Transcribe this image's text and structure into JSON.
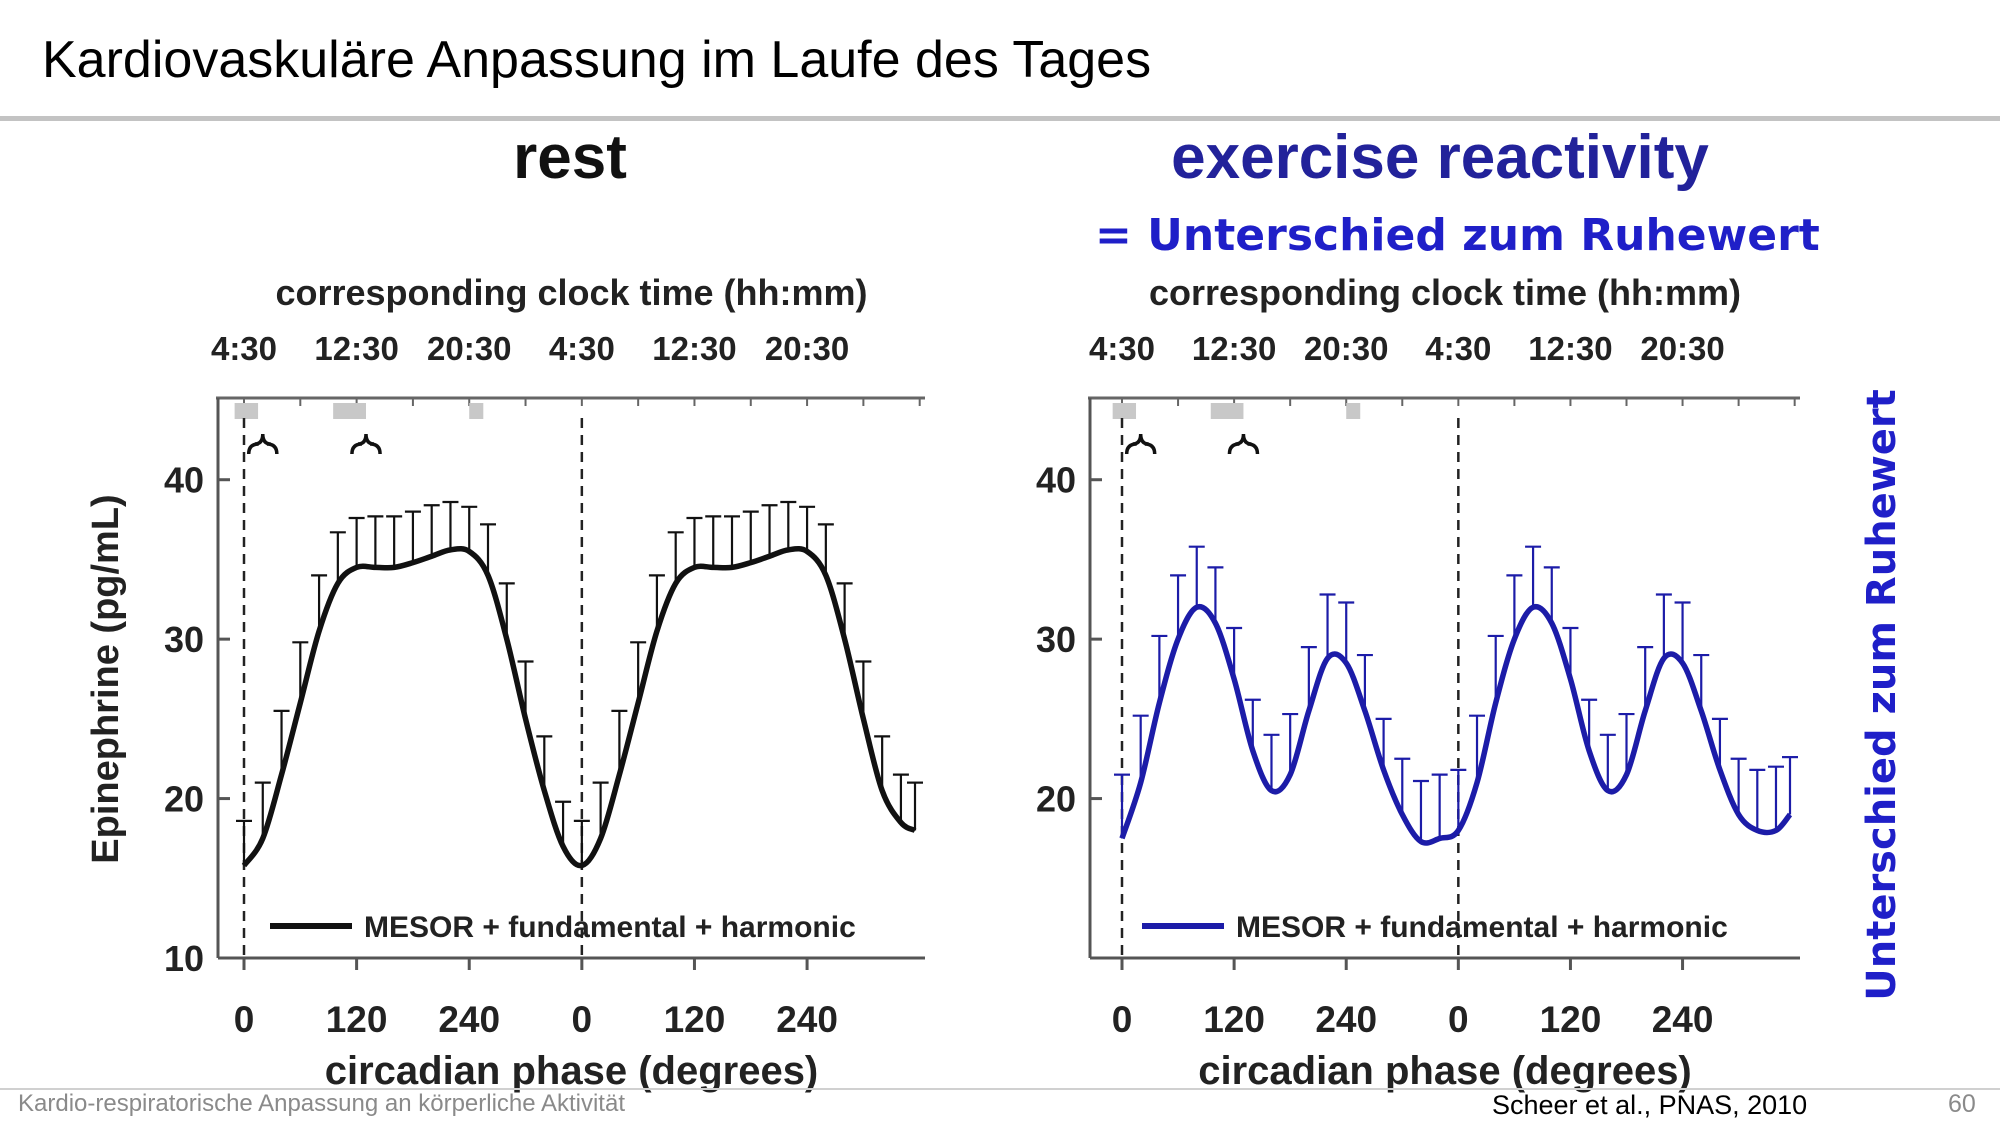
{
  "slide": {
    "title": "Kardiovaskuläre Anpassung im Laufe des Tages",
    "subtitle_eq": "=  Unterschied zum Ruhewert",
    "side_note": "Unterschied zum Ruhewert",
    "footer_left": "Kardio-respiratorische Anpassung an körperliche Aktivität",
    "citation": "Scheer et al., PNAS, 2010",
    "page_number": "60"
  },
  "chart_data": [
    {
      "type": "line",
      "title": "rest",
      "xlabel": "circadian phase (degrees)",
      "top_xlabel": "corresponding clock time (hh:mm)",
      "ylabel": "Epinephrine (pg/mL)",
      "xlim": [
        0,
        720
      ],
      "ylim": [
        10,
        45
      ],
      "yticks": [
        10,
        20,
        30,
        40
      ],
      "xtick_labels": [
        "0",
        "120",
        "240",
        "0",
        "120",
        "240"
      ],
      "top_tick_labels": [
        "4:30",
        "12:30",
        "20:30",
        "4:30",
        "12:30",
        "20:30"
      ],
      "legend": "MESOR + fundamental + harmonic",
      "color": "#111111",
      "x": [
        0,
        20,
        40,
        60,
        80,
        100,
        120,
        140,
        160,
        180,
        200,
        220,
        240,
        260,
        280,
        300,
        320,
        340,
        360,
        380,
        400,
        420,
        440,
        460,
        480,
        500,
        520,
        540,
        560,
        580,
        600,
        620,
        640,
        660,
        680,
        700,
        715
      ],
      "mean": [
        15.8,
        17.5,
        21.5,
        26,
        30.5,
        33.5,
        34.5,
        34.5,
        34.5,
        34.8,
        35.2,
        35.6,
        35.5,
        34,
        30,
        25,
        20.5,
        17,
        15.8,
        17.5,
        21.5,
        26,
        30.5,
        33.5,
        34.5,
        34.5,
        34.5,
        34.8,
        35.2,
        35.6,
        35.5,
        34,
        30,
        25,
        20.5,
        18.5,
        18
      ],
      "error": [
        2.8,
        3.5,
        4,
        3.8,
        3.5,
        3.2,
        3.1,
        3.2,
        3.2,
        3.2,
        3.2,
        3,
        2.8,
        3.2,
        3.5,
        3.6,
        3.4,
        2.8,
        2.8,
        3.5,
        4,
        3.8,
        3.5,
        3.2,
        3.1,
        3.2,
        3.2,
        3.2,
        3.2,
        3,
        2.8,
        3.2,
        3.5,
        3.6,
        3.4,
        3,
        3
      ],
      "sleep_bands": [
        [
          -10,
          15
        ],
        [
          95,
          130
        ],
        [
          240,
          255
        ]
      ],
      "dashed_lines": [
        0,
        360
      ],
      "braces": [
        [
          5,
          35
        ],
        [
          115,
          145
        ]
      ]
    },
    {
      "type": "line",
      "title": "exercise reactivity",
      "xlabel": "circadian phase (degrees)",
      "top_xlabel": "corresponding clock time (hh:mm)",
      "ylabel": "",
      "xlim": [
        0,
        720
      ],
      "ylim": [
        10,
        45
      ],
      "yticks": [
        20,
        30,
        40
      ],
      "xtick_labels": [
        "0",
        "120",
        "240",
        "0",
        "120",
        "240"
      ],
      "top_tick_labels": [
        "4:30",
        "12:30",
        "20:30",
        "4:30",
        "12:30",
        "20:30"
      ],
      "legend": "MESOR + fundamental + harmonic",
      "color": "#1c1ca8",
      "x": [
        0,
        20,
        40,
        60,
        80,
        100,
        120,
        140,
        160,
        180,
        200,
        220,
        240,
        260,
        280,
        300,
        320,
        340,
        360,
        380,
        400,
        420,
        440,
        460,
        480,
        500,
        520,
        540,
        560,
        580,
        600,
        620,
        640,
        660,
        680,
        700,
        715
      ],
      "mean": [
        17.5,
        21,
        26,
        30,
        32,
        31,
        27.5,
        23,
        20.5,
        21.5,
        25.5,
        28.8,
        28.5,
        25.5,
        21.8,
        19,
        17.3,
        17.5,
        18,
        21,
        26,
        30,
        32,
        31,
        27.5,
        23,
        20.5,
        21.5,
        25.5,
        28.8,
        28.5,
        25.5,
        21.8,
        19,
        18,
        18,
        19
      ],
      "error": [
        4,
        4.2,
        4.2,
        4,
        3.8,
        3.5,
        3.2,
        3.2,
        3.5,
        3.8,
        4,
        4,
        3.8,
        3.5,
        3.2,
        3.5,
        3.8,
        4,
        3.8,
        4.2,
        4.2,
        4,
        3.8,
        3.5,
        3.2,
        3.2,
        3.5,
        3.8,
        4,
        4,
        3.8,
        3.5,
        3.2,
        3.5,
        3.8,
        4,
        3.6
      ],
      "sleep_bands": [
        [
          -10,
          15
        ],
        [
          95,
          130
        ],
        [
          240,
          255
        ]
      ],
      "dashed_lines": [
        0,
        360
      ],
      "braces": [
        [
          5,
          35
        ],
        [
          115,
          145
        ]
      ]
    }
  ]
}
